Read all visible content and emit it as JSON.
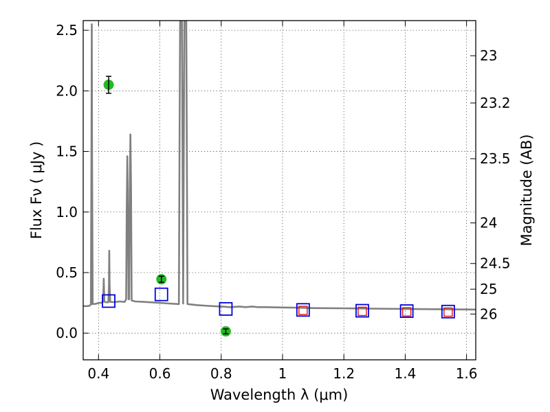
{
  "chart_data": {
    "type": "line",
    "xlabel": "Wavelength  λ (μm)",
    "ylabel": "Flux  Fν ( μJy )",
    "y2label": "Magnitude (AB)",
    "xlim": [
      0.35,
      1.63
    ],
    "ylim": [
      -0.22,
      2.58
    ],
    "grid": true,
    "x_ticks": [
      {
        "value": 0.4,
        "label": "0.4"
      },
      {
        "value": 0.6,
        "label": "0.6"
      },
      {
        "value": 0.8,
        "label": "0.8"
      },
      {
        "value": 1.0,
        "label": "1"
      },
      {
        "value": 1.2,
        "label": "1.2"
      },
      {
        "value": 1.4,
        "label": "1.4"
      },
      {
        "value": 1.6,
        "label": "1.6"
      }
    ],
    "y_ticks": [
      {
        "value": 0.0,
        "label": "0.0"
      },
      {
        "value": 0.5,
        "label": "0.5"
      },
      {
        "value": 1.0,
        "label": "1.0"
      },
      {
        "value": 1.5,
        "label": "1.5"
      },
      {
        "value": 2.0,
        "label": "2.0"
      },
      {
        "value": 2.5,
        "label": "2.5"
      }
    ],
    "y2_ticks": [
      {
        "flux": 2.29,
        "label": "23"
      },
      {
        "flux": 1.9,
        "label": "23.2"
      },
      {
        "flux": 1.44,
        "label": "23.5"
      },
      {
        "flux": 0.91,
        "label": "24"
      },
      {
        "flux": 0.575,
        "label": "24.5"
      },
      {
        "flux": 0.363,
        "label": "25"
      },
      {
        "flux": 0.158,
        "label": "26"
      }
    ],
    "series": [
      {
        "kind": "line",
        "color": "#808080",
        "points": [
          [
            0.35,
            0.225
          ],
          [
            0.36,
            0.222
          ],
          [
            0.37,
            0.226
          ],
          [
            0.375,
            0.235
          ],
          [
            0.377,
            1.5
          ],
          [
            0.378,
            2.55
          ],
          [
            0.379,
            1.5
          ],
          [
            0.381,
            0.24
          ],
          [
            0.39,
            0.242
          ],
          [
            0.4,
            0.248
          ],
          [
            0.41,
            0.252
          ],
          [
            0.415,
            0.26
          ],
          [
            0.417,
            0.45
          ],
          [
            0.419,
            0.26
          ],
          [
            0.425,
            0.255
          ],
          [
            0.432,
            0.255
          ],
          [
            0.434,
            0.4
          ],
          [
            0.435,
            0.68
          ],
          [
            0.436,
            0.4
          ],
          [
            0.438,
            0.258
          ],
          [
            0.45,
            0.256
          ],
          [
            0.47,
            0.262
          ],
          [
            0.485,
            0.258
          ],
          [
            0.49,
            0.28
          ],
          [
            0.492,
            1.0
          ],
          [
            0.494,
            1.46
          ],
          [
            0.496,
            1.0
          ],
          [
            0.498,
            0.28
          ],
          [
            0.5,
            0.28
          ],
          [
            0.502,
            1.2
          ],
          [
            0.504,
            1.64
          ],
          [
            0.506,
            1.2
          ],
          [
            0.508,
            0.27
          ],
          [
            0.52,
            0.262
          ],
          [
            0.55,
            0.258
          ],
          [
            0.6,
            0.25
          ],
          [
            0.63,
            0.245
          ],
          [
            0.66,
            0.24
          ],
          [
            0.662,
            0.24
          ],
          [
            0.664,
            1.5
          ],
          [
            0.666,
            2.6
          ],
          [
            0.672,
            2.6
          ],
          [
            0.674,
            1.5
          ],
          [
            0.676,
            0.245
          ],
          [
            0.678,
            1.5
          ],
          [
            0.68,
            2.6
          ],
          [
            0.686,
            2.6
          ],
          [
            0.688,
            1.5
          ],
          [
            0.69,
            0.24
          ],
          [
            0.72,
            0.232
          ],
          [
            0.76,
            0.225
          ],
          [
            0.8,
            0.22
          ],
          [
            0.83,
            0.215
          ],
          [
            0.86,
            0.22
          ],
          [
            0.88,
            0.215
          ],
          [
            0.9,
            0.22
          ],
          [
            0.92,
            0.215
          ],
          [
            0.95,
            0.215
          ],
          [
            1.0,
            0.212
          ],
          [
            1.05,
            0.21
          ],
          [
            1.1,
            0.207
          ],
          [
            1.2,
            0.205
          ],
          [
            1.3,
            0.202
          ],
          [
            1.4,
            0.2
          ],
          [
            1.5,
            0.198
          ],
          [
            1.63,
            0.195
          ]
        ]
      },
      {
        "kind": "scatter",
        "marker": "square",
        "color": "#0000dd",
        "points": [
          [
            0.433,
            0.265
          ],
          [
            0.605,
            0.32
          ],
          [
            0.815,
            0.2
          ],
          [
            1.067,
            0.192
          ],
          [
            1.26,
            0.185
          ],
          [
            1.405,
            0.182
          ],
          [
            1.54,
            0.178
          ]
        ]
      },
      {
        "kind": "scatter",
        "marker": "small-square",
        "color": "#dd1111",
        "points": [
          [
            1.067,
            0.188
          ],
          [
            1.26,
            0.18
          ],
          [
            1.405,
            0.176
          ],
          [
            1.54,
            0.174
          ]
        ]
      },
      {
        "kind": "scatter-errorbar",
        "marker": "circle",
        "color": "#22bb22",
        "points": [
          {
            "x": 0.433,
            "y": 2.05,
            "err": 0.07
          },
          {
            "x": 0.605,
            "y": 0.445,
            "err": 0.025
          },
          {
            "x": 0.815,
            "y": 0.015,
            "err": 0.02
          }
        ]
      }
    ]
  }
}
